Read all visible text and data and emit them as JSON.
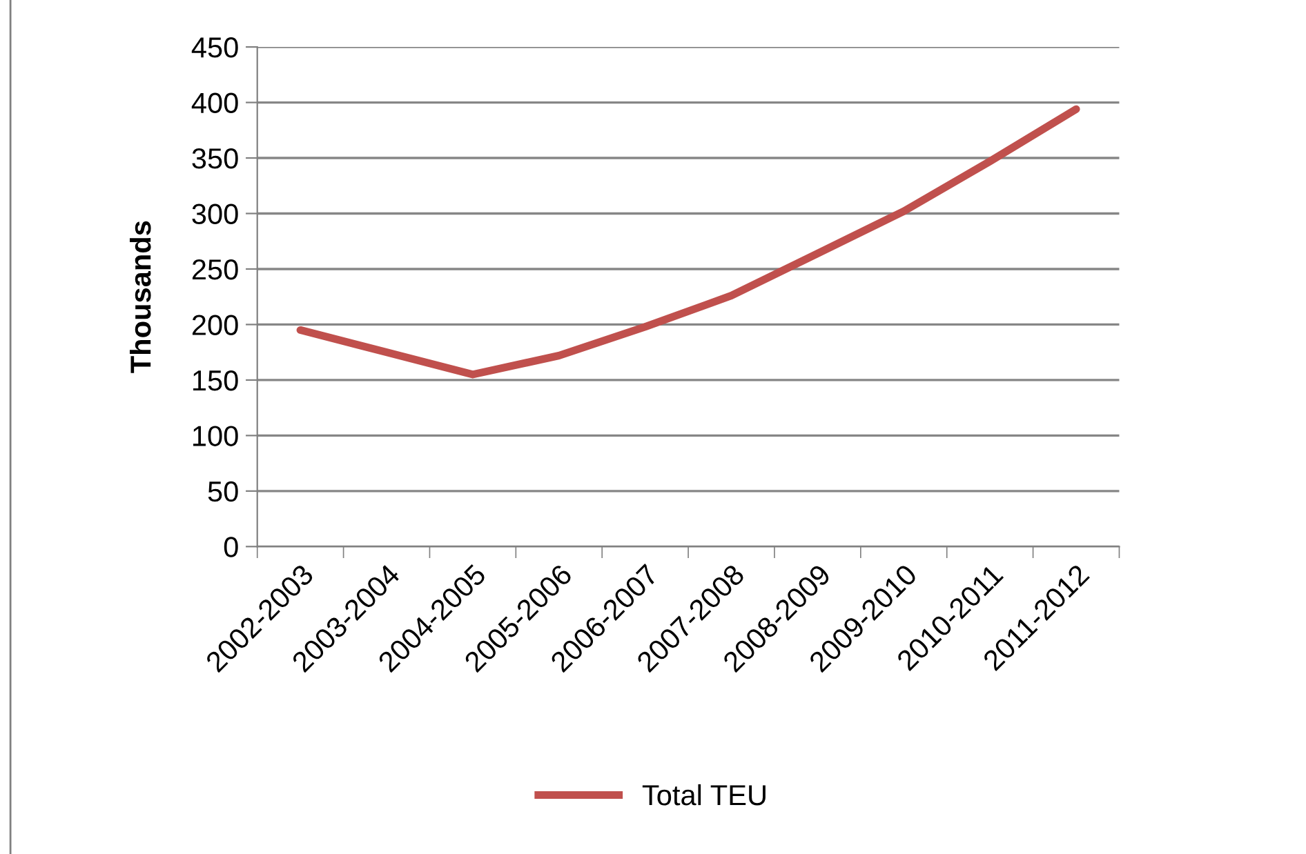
{
  "chart_data": {
    "type": "line",
    "ylabel": "Thousands",
    "categories": [
      "2002-2003",
      "2003-2004",
      "2004-2005",
      "2005-2006",
      "2006-2007",
      "2007-2008",
      "2008-2009",
      "2009-2010",
      "2010-2011",
      "2011-2012"
    ],
    "series": [
      {
        "name": "Total TEU",
        "color": "#c0504d",
        "values": [
          195,
          175,
          155,
          172,
          198,
          226,
          264,
          302,
          347,
          394
        ]
      }
    ],
    "ylim": [
      0,
      450
    ],
    "yticks": [
      0,
      50,
      100,
      150,
      200,
      250,
      300,
      350,
      400,
      450
    ],
    "grid": "y",
    "legend": "bottom",
    "marker": "none",
    "line_style": "solid"
  }
}
